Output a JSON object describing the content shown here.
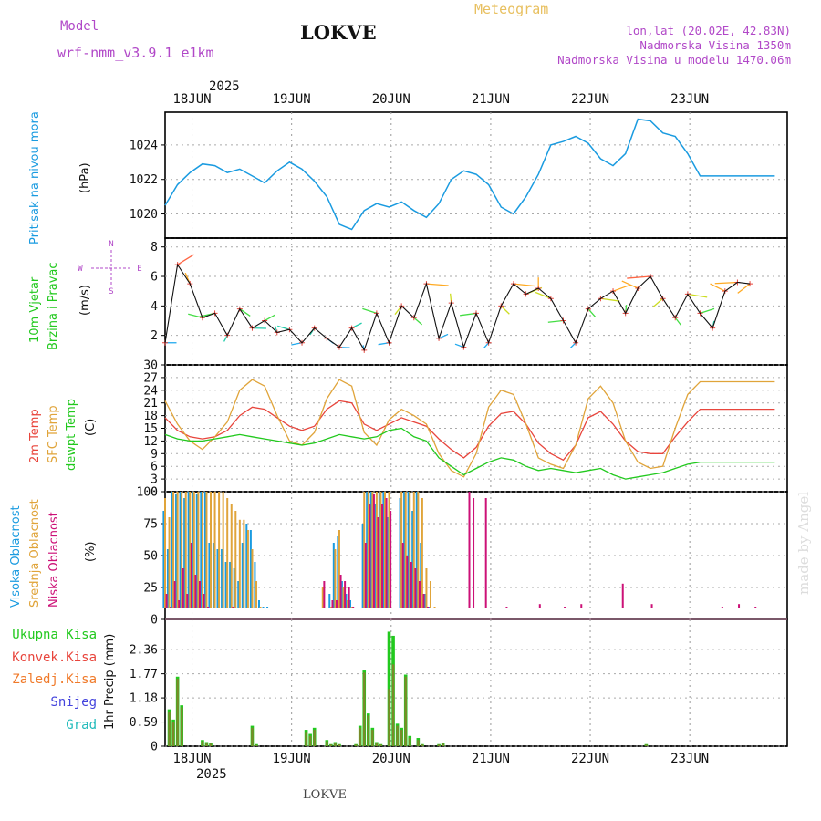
{
  "header": {
    "model_label": "Model",
    "model_name": "wrf-nmm_v3.9.1  e1km",
    "station": "LOKVE",
    "title": "Meteogram",
    "lonlat": "lon,lat (20.02E, 42.83N)",
    "elevation": "Nadmorska Visina 1350m",
    "model_elevation": "Nadmorska Visina u modelu 1470.06m",
    "credit": "made by Angel",
    "footer_station": "LOKVE"
  },
  "colors": {
    "pressure": "#1a9be0",
    "temp2m": "#e8453c",
    "sfc_temp": "#e0a43a",
    "dewpt": "#22c91e",
    "high_cloud": "#1a9be0",
    "mid_cloud": "#e0a43a",
    "low_cloud": "#cc1177",
    "total_precip": "#22c91e",
    "conv_precip": "#e8453c",
    "frozen_precip": "#f07a2a",
    "snow": "#4444dd",
    "hail": "#22bbbb",
    "purple": "#b148c8"
  },
  "time_axis": {
    "year": "2025",
    "days": [
      "18JUN",
      "19JUN",
      "20JUN",
      "21JUN",
      "22JUN",
      "23JUN"
    ]
  },
  "chart_data": [
    {
      "type": "line",
      "name": "pressure",
      "ylabel": "Pritisak na nivou mora",
      "unit": "(hPa)",
      "ylim": [
        1018.6,
        1025.9
      ],
      "yticks": [
        1020,
        1022,
        1024
      ],
      "x_hours": [
        0,
        3,
        6,
        9,
        12,
        15,
        18,
        21,
        24,
        27,
        30,
        33,
        36,
        39,
        42,
        45,
        48,
        51,
        54,
        57,
        60,
        63,
        66,
        69,
        72,
        75,
        78,
        81,
        84,
        87,
        90,
        93,
        96,
        99,
        102,
        105,
        108,
        111,
        114,
        117,
        120,
        123,
        126,
        129,
        132,
        135,
        138,
        141,
        144,
        147
      ],
      "values": [
        1020.5,
        1021.7,
        1022.4,
        1022.9,
        1022.8,
        1022.4,
        1022.6,
        1022.2,
        1021.8,
        1022.5,
        1023.0,
        1022.6,
        1021.9,
        1021.0,
        1019.4,
        1019.1,
        1020.2,
        1020.6,
        1020.4,
        1020.7,
        1020.2,
        1019.8,
        1020.6,
        1022.0,
        1022.5,
        1022.3,
        1021.7,
        1020.4,
        1020.0,
        1021.0,
        1022.3,
        1024.0,
        1024.2,
        1024.5,
        1024.1,
        1023.2,
        1022.8,
        1023.5,
        1025.5,
        1025.4,
        1024.7,
        1024.5,
        1023.5,
        1022.2,
        1022.2,
        1022.2,
        1022.2,
        1022.2,
        1022.2,
        1022.2
      ]
    },
    {
      "type": "line",
      "name": "wind",
      "ylabel": "10m Vjetar",
      "ylabel2": "Brzina i Pravac",
      "unit": "(m/s)",
      "ylim": [
        0,
        8.6
      ],
      "yticks": [
        2,
        4,
        6,
        8
      ],
      "compass": {
        "n": "N",
        "s": "S",
        "e": "E",
        "w": "W"
      },
      "x_hours": [
        0,
        3,
        6,
        9,
        12,
        15,
        18,
        21,
        24,
        27,
        30,
        33,
        36,
        39,
        42,
        45,
        48,
        51,
        54,
        57,
        60,
        63,
        66,
        69,
        72,
        75,
        78,
        81,
        84,
        87,
        90,
        93,
        96,
        99,
        102,
        105,
        108,
        111,
        114,
        117,
        120,
        123,
        126,
        129,
        132,
        135,
        138,
        141
      ],
      "values": [
        1.5,
        6.8,
        5.5,
        3.2,
        3.5,
        2.0,
        3.8,
        2.5,
        3.0,
        2.2,
        2.4,
        1.5,
        2.5,
        1.8,
        1.2,
        2.5,
        1.0,
        3.5,
        1.5,
        4.0,
        3.2,
        5.5,
        1.8,
        4.2,
        1.2,
        3.5,
        1.5,
        4.0,
        5.5,
        4.8,
        5.2,
        4.5,
        3.0,
        1.5,
        3.8,
        4.5,
        5.0,
        3.5,
        5.2,
        6.0,
        4.5,
        3.2,
        4.8,
        3.5,
        2.5,
        5.0,
        5.6,
        5.5
      ]
    },
    {
      "type": "line",
      "name": "temperature",
      "ylabel": "2m Temp",
      "ylabel2": "SFC Temp",
      "ylabel3": "dewpt Temp",
      "unit": "(C)",
      "ylim": [
        0,
        30
      ],
      "yticks": [
        0,
        3,
        6,
        9,
        12,
        15,
        18,
        21,
        24,
        27,
        30
      ],
      "x_hours": [
        0,
        3,
        6,
        9,
        12,
        15,
        18,
        21,
        24,
        27,
        30,
        33,
        36,
        39,
        42,
        45,
        48,
        51,
        54,
        57,
        60,
        63,
        66,
        69,
        72,
        75,
        78,
        81,
        84,
        87,
        90,
        93,
        96,
        99,
        102,
        105,
        108,
        111,
        114,
        117,
        120,
        123,
        126,
        129,
        132,
        135,
        138,
        141,
        144,
        147
      ],
      "series": [
        {
          "name": "2m Temp",
          "values": [
            17.5,
            14.5,
            13.0,
            12.5,
            13.0,
            14.5,
            18.0,
            20.0,
            19.5,
            17.5,
            15.5,
            14.5,
            15.5,
            19.5,
            21.5,
            21.0,
            16.0,
            14.5,
            16.0,
            17.5,
            16.5,
            15.5,
            12.5,
            10.0,
            8.0,
            10.5,
            15.5,
            18.5,
            19.0,
            16.0,
            11.5,
            9.0,
            7.5,
            11.0,
            17.5,
            19.0,
            16.0,
            12.0,
            9.5,
            9.0,
            9.0,
            13.0,
            16.5,
            19.5,
            19.5,
            19.5,
            19.5,
            19.5,
            19.5,
            19.5
          ]
        },
        {
          "name": "SFC Temp",
          "values": [
            21.5,
            16.0,
            12.0,
            10.0,
            13.0,
            16.5,
            24.0,
            26.5,
            25.0,
            18.0,
            12.0,
            11.0,
            14.0,
            22.0,
            26.5,
            25.0,
            14.0,
            11.0,
            17.0,
            19.5,
            18.0,
            16.0,
            9.0,
            5.0,
            3.5,
            9.0,
            20.0,
            24.0,
            23.0,
            16.0,
            8.0,
            6.5,
            5.5,
            11.0,
            22.0,
            25.0,
            21.0,
            12.0,
            7.0,
            5.5,
            6.0,
            15.0,
            23.0,
            26.0,
            26.0,
            26.0,
            26.0,
            26.0,
            26.0,
            26.0
          ]
        },
        {
          "name": "dewpt Temp",
          "values": [
            13.5,
            12.5,
            12.0,
            12.0,
            12.5,
            13.0,
            13.5,
            13.0,
            12.5,
            12.0,
            11.5,
            11.0,
            11.5,
            12.5,
            13.5,
            13.0,
            12.5,
            13.0,
            14.5,
            15.0,
            13.0,
            12.0,
            8.0,
            6.0,
            4.0,
            5.5,
            7.0,
            8.0,
            7.5,
            6.0,
            5.0,
            5.5,
            5.0,
            4.5,
            5.0,
            5.5,
            4.0,
            3.0,
            3.5,
            4.0,
            4.5,
            5.5,
            6.5,
            7.0,
            7.0,
            7.0,
            7.0,
            7.0,
            7.0,
            7.0
          ]
        }
      ]
    },
    {
      "type": "bar",
      "name": "clouds",
      "ylabel": "Visoka Oblacnost",
      "ylabel2": "Srednja Oblacnost",
      "ylabel3": "Niska Oblacnost",
      "unit": "(%)",
      "ylim": [
        0,
        100
      ],
      "yticks": [
        0,
        25,
        50,
        75,
        100
      ],
      "x_hours": [
        0,
        1,
        2,
        3,
        4,
        5,
        6,
        7,
        8,
        9,
        10,
        11,
        12,
        13,
        14,
        15,
        16,
        17,
        18,
        19,
        20,
        21,
        22,
        23,
        24,
        25,
        34,
        35,
        36,
        38,
        40,
        41,
        42,
        43,
        44,
        45,
        48,
        49,
        50,
        51,
        52,
        53,
        54,
        57,
        58,
        59,
        60,
        61,
        62,
        63,
        64,
        65,
        66,
        73,
        74,
        77,
        82,
        85,
        90,
        96,
        100,
        104,
        110,
        117,
        124,
        131,
        134,
        138,
        142
      ],
      "series": [
        {
          "name": "Visoka Oblacnost",
          "values": [
            85,
            55,
            100,
            98,
            100,
            95,
            100,
            100,
            98,
            100,
            100,
            60,
            60,
            55,
            55,
            45,
            45,
            40,
            30,
            60,
            75,
            70,
            45,
            15,
            10,
            10,
            0,
            0,
            0,
            0,
            20,
            60,
            65,
            30,
            20,
            15,
            75,
            100,
            100,
            90,
            100,
            100,
            80,
            95,
            100,
            100,
            85,
            100,
            60,
            20,
            10,
            5,
            0,
            0,
            0,
            0,
            0,
            0,
            0,
            0,
            0,
            0,
            0,
            0,
            0,
            0,
            0,
            0,
            0
          ]
        },
        {
          "name": "Srednja Oblacnost",
          "values": [
            95,
            80,
            100,
            100,
            100,
            100,
            100,
            100,
            100,
            100,
            100,
            100,
            100,
            100,
            100,
            95,
            90,
            85,
            78,
            78,
            70,
            55,
            30,
            10,
            8,
            5,
            0,
            0,
            0,
            25,
            10,
            55,
            70,
            25,
            15,
            10,
            100,
            100,
            100,
            100,
            100,
            100,
            100,
            100,
            100,
            100,
            100,
            100,
            95,
            40,
            30,
            10,
            5,
            0,
            0,
            0,
            0,
            0,
            0,
            0,
            0,
            0,
            0,
            0,
            0,
            0,
            0,
            0,
            0
          ]
        },
        {
          "name": "Niska Oblacnost",
          "values": [
            20,
            10,
            30,
            15,
            40,
            20,
            60,
            35,
            30,
            20,
            10,
            5,
            5,
            5,
            5,
            5,
            10,
            5,
            5,
            5,
            5,
            5,
            5,
            5,
            5,
            5,
            3,
            3,
            5,
            30,
            15,
            15,
            35,
            30,
            25,
            10,
            60,
            90,
            98,
            80,
            90,
            95,
            85,
            60,
            50,
            45,
            40,
            30,
            20,
            10,
            5,
            3,
            2,
            100,
            95,
            95,
            10,
            8,
            12,
            10,
            12,
            8,
            28,
            12,
            6,
            5,
            10,
            12,
            10
          ]
        }
      ]
    },
    {
      "type": "bar",
      "name": "precipitation",
      "ylabel": "1hr Precip (mm)",
      "unit": "(mm)",
      "legend": [
        "Ukupna Kisa",
        "Konvek.Kisa",
        "Zaledj.Kisa",
        "Snijeg",
        "Grad"
      ],
      "ylim": [
        0,
        3.1
      ],
      "yticks": [
        0,
        0.59,
        1.18,
        1.77,
        2.36
      ],
      "ytick_labels": [
        "0",
        "0.59",
        "1.18",
        "1.77",
        "2.36"
      ],
      "x_hours": [
        1,
        2,
        3,
        4,
        9,
        10,
        11,
        21,
        22,
        34,
        35,
        36,
        39,
        40,
        41,
        42,
        46,
        47,
        48,
        49,
        50,
        51,
        52,
        53,
        54,
        55,
        56,
        57,
        58,
        59,
        61,
        62,
        66,
        67,
        116
      ],
      "series": [
        {
          "name": "Ukupna Kisa",
          "values": [
            0.9,
            0.65,
            1.7,
            1.0,
            0.15,
            0.1,
            0.08,
            0.5,
            0.05,
            0.4,
            0.3,
            0.45,
            0.15,
            0.05,
            0.1,
            0.05,
            0.05,
            0.5,
            1.85,
            0.8,
            0.45,
            0.1,
            0.05,
            0.0,
            2.8,
            2.7,
            0.55,
            0.45,
            1.75,
            0.25,
            0.2,
            0.05,
            0.05,
            0.08,
            0.05
          ]
        },
        {
          "name": "Konvek.Kisa",
          "values": [
            0.85,
            0.6,
            1.65,
            0.95,
            0.12,
            0.08,
            0.06,
            0.45,
            0.03,
            0.35,
            0.25,
            0.4,
            0.12,
            0.04,
            0.08,
            0.04,
            0.04,
            0.45,
            1.8,
            0.75,
            0.4,
            0.08,
            0.04,
            0.0,
            1.4,
            2.0,
            0.5,
            0.4,
            1.7,
            0.2,
            0.15,
            0.04,
            0.04,
            0.06,
            0.04
          ]
        }
      ]
    }
  ]
}
